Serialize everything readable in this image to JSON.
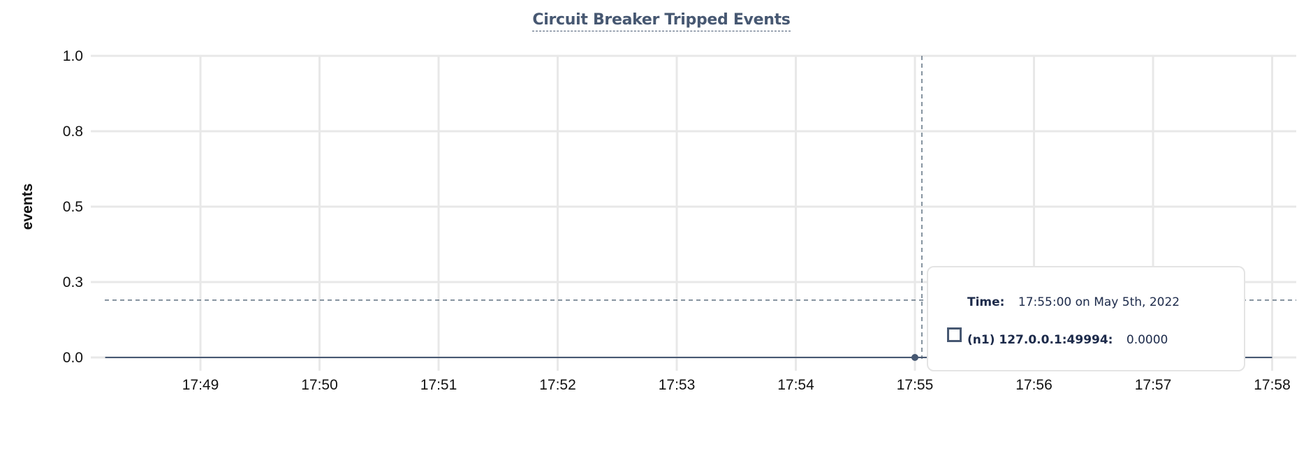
{
  "chart_data": {
    "type": "line",
    "title": "Circuit Breaker Tripped Events",
    "xlabel": "",
    "ylabel": "events",
    "x_tick_labels": [
      "17:49",
      "17:50",
      "17:51",
      "17:52",
      "17:53",
      "17:54",
      "17:55",
      "17:56",
      "17:57",
      "17:58"
    ],
    "y_tick_labels": [
      "0.0",
      "0.3",
      "0.5",
      "0.8",
      "1.0"
    ],
    "y_ticks": [
      0,
      0.25,
      0.5,
      0.75,
      1.0
    ],
    "ylim": [
      0,
      1.0
    ],
    "xlim": [
      "17:48:12",
      "17:58:00"
    ],
    "grid": true,
    "series": [
      {
        "name": "(n1) 127.0.0.1:49994",
        "color": "#475872",
        "x": [
          "17:48:12",
          "17:49:00",
          "17:50:00",
          "17:51:00",
          "17:52:00",
          "17:53:00",
          "17:54:00",
          "17:55:00",
          "17:56:00",
          "17:57:00",
          "17:58:00"
        ],
        "y": [
          0,
          0,
          0,
          0,
          0,
          0,
          0,
          0,
          0,
          0,
          0
        ]
      }
    ],
    "hover": {
      "x": "17:55:00",
      "y_crosshair": 0.19
    }
  },
  "tooltip": {
    "time_label": "Time:",
    "time_value": "17:55:00 on May 5th, 2022",
    "series_label": "(n1) 127.0.0.1:49994:",
    "series_value": "0.0000"
  },
  "colors": {
    "title": "#475872",
    "series": "#475872",
    "grid": "#e8e8e8",
    "crosshair": "#5f7080"
  }
}
